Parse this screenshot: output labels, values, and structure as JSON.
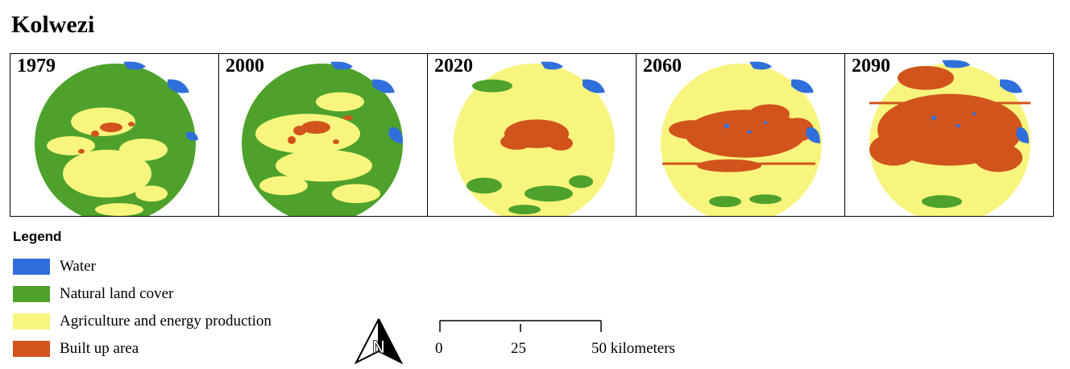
{
  "title": "Kolwezi",
  "panels": [
    {
      "year": "1979",
      "base": "natural",
      "built_level": 0.1
    },
    {
      "year": "2000",
      "base": "natural",
      "built_level": 0.2
    },
    {
      "year": "2020",
      "base": "agriculture",
      "built_level": 0.45
    },
    {
      "year": "2060",
      "base": "agriculture",
      "built_level": 0.8
    },
    {
      "year": "2090",
      "base": "agriculture",
      "built_level": 0.95
    }
  ],
  "legend": {
    "title": "Legend",
    "items": [
      {
        "label": "Water",
        "color": "#2f6fdc"
      },
      {
        "label": "Natural land cover",
        "color": "#4ea22b"
      },
      {
        "label": "Agriculture and energy production",
        "color": "#f7f57e"
      },
      {
        "label": "Built up area",
        "color": "#d2541d"
      }
    ]
  },
  "scale": {
    "ticks": [
      "0",
      "25",
      "50 kilometers"
    ]
  },
  "north_arrow": {
    "letter": "N"
  }
}
